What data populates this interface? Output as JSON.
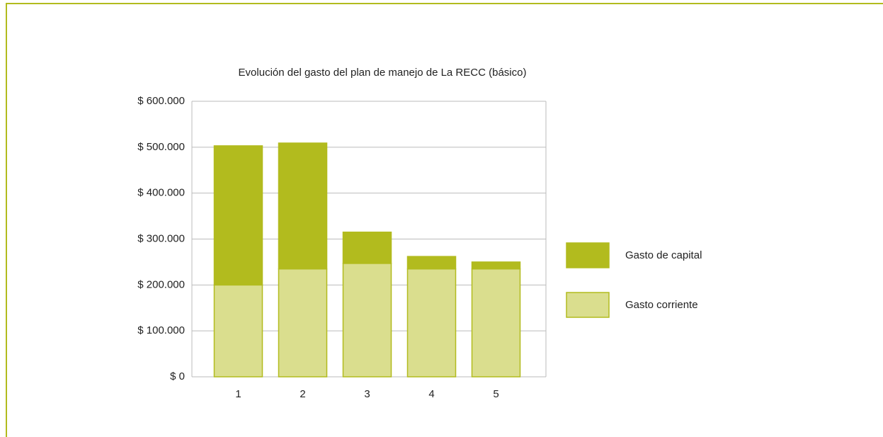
{
  "chart_data": {
    "type": "stacked_bar",
    "title": "Evolución del gasto del plan de manejo de La RECC (básico)",
    "categories": [
      "1",
      "2",
      "3",
      "4",
      "5"
    ],
    "series": [
      {
        "name": "Gasto corriente",
        "color": "#dade8e",
        "values": [
          200000,
          235000,
          247000,
          235000,
          235000
        ]
      },
      {
        "name": "Gasto de capital",
        "color": "#b2bb1e",
        "values": [
          303000,
          274000,
          68000,
          27000,
          15000
        ]
      }
    ],
    "ylim": [
      0,
      600000
    ],
    "yticks": [
      {
        "value": 0,
        "label": "$ 0"
      },
      {
        "value": 100000,
        "label": "$ 100.000"
      },
      {
        "value": 200000,
        "label": "$ 200.000"
      },
      {
        "value": 300000,
        "label": "$ 300.000"
      },
      {
        "value": 400000,
        "label": "$ 400.000"
      },
      {
        "value": 500000,
        "label": "$ 500.000"
      },
      {
        "value": 600000,
        "label": "$ 600.000"
      }
    ],
    "grid": true,
    "legend": "right"
  }
}
